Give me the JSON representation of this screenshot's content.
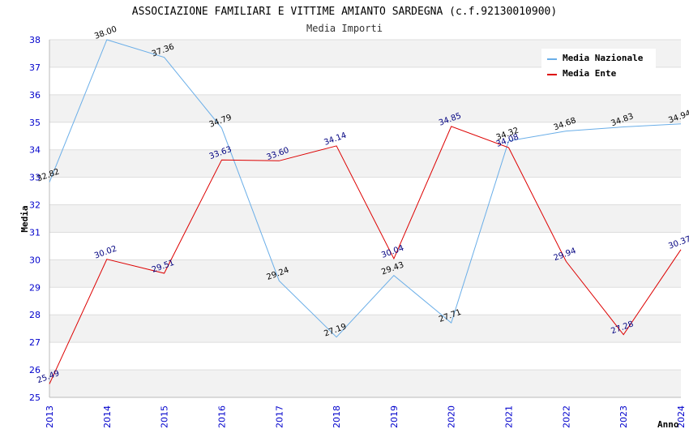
{
  "chart_data": {
    "type": "line",
    "title": "ASSOCIAZIONE FAMILIARI E VITTIME AMIANTO SARDEGNA (c.f.92130010900)",
    "subtitle": "Media Importi",
    "xlabel": "Anno",
    "ylabel": "Media",
    "ylim": [
      25,
      38
    ],
    "yticks": [
      25,
      26,
      27,
      28,
      29,
      30,
      31,
      32,
      33,
      34,
      35,
      36,
      37,
      38
    ],
    "x": [
      "2013",
      "2014",
      "2015",
      "2016",
      "2017",
      "2018",
      "2019",
      "2020",
      "2021",
      "2022",
      "2023",
      "2024"
    ],
    "grid": true,
    "legend_position": "top-right",
    "series": [
      {
        "name": "Media Nazionale",
        "color": "#6aaee8",
        "label_color": "#000000",
        "values": [
          32.82,
          38.0,
          37.36,
          34.79,
          29.24,
          27.19,
          29.43,
          27.71,
          34.32,
          34.68,
          34.83,
          34.94
        ],
        "labels": [
          "32.82",
          "38.00",
          "37.36",
          "34.79",
          "29.24",
          "27.19",
          "29.43",
          "27.71",
          "34.32",
          "34.68",
          "34.83",
          "34.94"
        ]
      },
      {
        "name": "Media Ente",
        "color": "#dd0000",
        "label_color": "#000080",
        "values": [
          25.49,
          30.02,
          29.51,
          33.63,
          33.6,
          34.14,
          30.04,
          34.85,
          34.08,
          29.94,
          27.28,
          30.37
        ],
        "labels": [
          "25.49",
          "30.02",
          "29.51",
          "33.63",
          "33.60",
          "34.14",
          "30.04",
          "34.85",
          "34.08",
          "29.94",
          "27.28",
          "30.37"
        ]
      }
    ]
  }
}
